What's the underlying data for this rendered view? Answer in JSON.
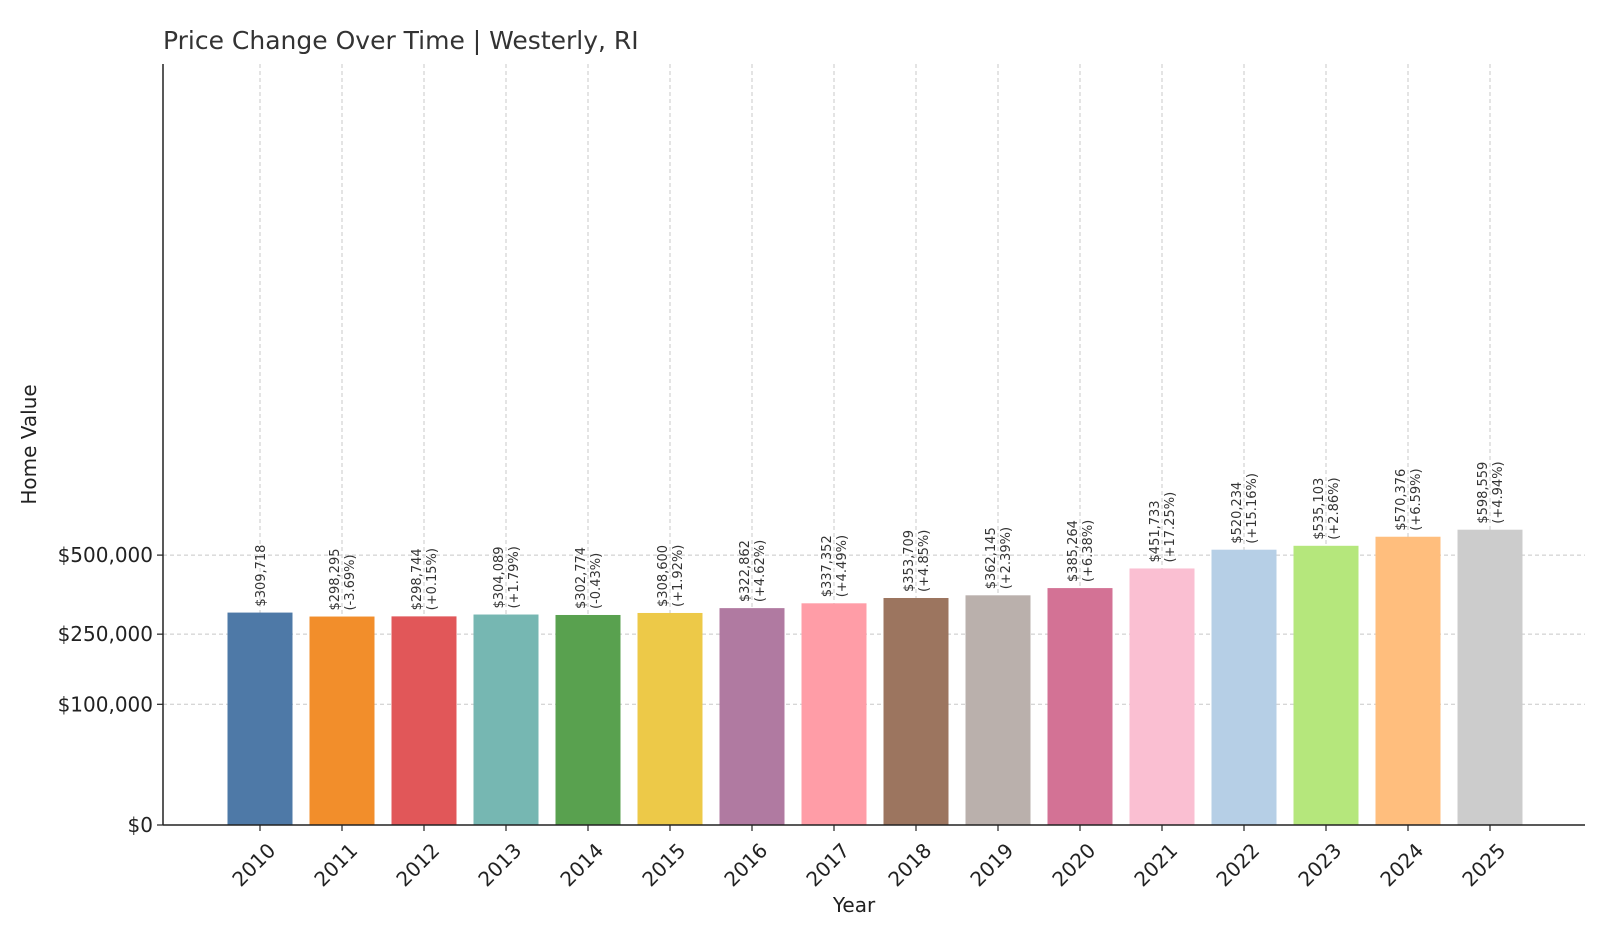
{
  "chart_data": {
    "type": "bar",
    "title": "Price Change Over Time | Westerly, RI",
    "xlabel": "Year",
    "ylabel": "Home Value",
    "ylim": [
      0,
      625000
    ],
    "yticks": [
      {
        "value": 0,
        "label": "$0"
      },
      {
        "value": 100000,
        "label": "$100,000"
      },
      {
        "value": 250000,
        "label": "$250,000"
      },
      {
        "value": 500000,
        "label": "$500,000"
      }
    ],
    "grid": true,
    "categories": [
      "2010",
      "2011",
      "2012",
      "2013",
      "2014",
      "2015",
      "2016",
      "2017",
      "2018",
      "2019",
      "2020",
      "2021",
      "2022",
      "2023",
      "2024",
      "2025"
    ],
    "values": [
      309718,
      298295,
      298744,
      304089,
      302774,
      308600,
      322862,
      337352,
      353709,
      362145,
      385264,
      451733,
      520234,
      535103,
      570376,
      598559
    ],
    "value_labels": [
      "$309,718",
      "$298,295",
      "$298,744",
      "$304,089",
      "$302,774",
      "$308,600",
      "$322,862",
      "$337,352",
      "$353,709",
      "$362,145",
      "$385,264",
      "$451,733",
      "$520,234",
      "$535,103",
      "$570,376",
      "$598,559"
    ],
    "change_labels": [
      "",
      "(-3.69%)",
      "(+0.15%)",
      "(+1.79%)",
      "(-0.43%)",
      "(+1.92%)",
      "(+4.62%)",
      "(+4.49%)",
      "(+4.85%)",
      "(+2.39%)",
      "(+6.38%)",
      "(+17.25%)",
      "(+15.16%)",
      "(+2.86%)",
      "(+6.59%)",
      "(+4.94%)"
    ],
    "colors": [
      "#4e79a7",
      "#f28e2b",
      "#e15759",
      "#76b7b2",
      "#59a14f",
      "#edc948",
      "#b07aa1",
      "#ff9da7",
      "#9c755f",
      "#bab0ac",
      "#d37295",
      "#fabfd2",
      "#b6cfe6",
      "#b5e77c",
      "#ffbe7d",
      "#cccccc"
    ]
  }
}
